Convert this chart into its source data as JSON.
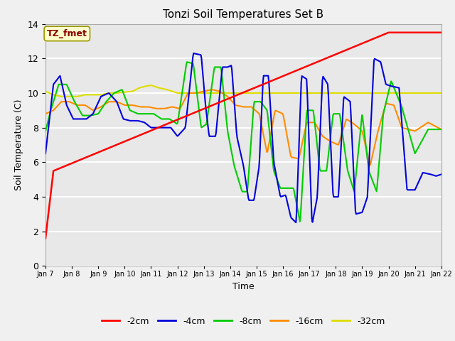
{
  "title": "Tonzi Soil Temperatures Set B",
  "xlabel": "Time",
  "ylabel": "Soil Temperature (C)",
  "xlim": [
    7,
    22
  ],
  "ylim": [
    0,
    14
  ],
  "yticks": [
    0,
    2,
    4,
    6,
    8,
    10,
    12,
    14
  ],
  "xtick_labels": [
    "Jan 7",
    "Jan 8",
    "Jan 9",
    "Jan 10",
    "Jan 11",
    "Jan 12",
    "Jan 13",
    "Jan 14",
    "Jan 15",
    "Jan 16",
    "Jan 17",
    "Jan 18",
    "Jan 19",
    "Jan 20",
    "Jan 21",
    "Jan 22"
  ],
  "xtick_positions": [
    7,
    8,
    9,
    10,
    11,
    12,
    13,
    14,
    15,
    16,
    17,
    18,
    19,
    20,
    21,
    22
  ],
  "plot_bg_color": "#e8e8e8",
  "fig_bg_color": "#f0f0f0",
  "grid_color": "#ffffff",
  "annotation_text": "TZ_fmet",
  "annotation_color": "#8b0000",
  "annotation_bg": "#ffffcc",
  "annotation_edge": "#999900",
  "series_colors": {
    "2cm": "#ff0000",
    "4cm": "#0000dd",
    "8cm": "#00cc00",
    "16cm": "#ff8c00",
    "32cm": "#dddd00"
  },
  "series_labels": {
    "2cm": "-2cm",
    "4cm": "-4cm",
    "8cm": "-8cm",
    "16cm": "-16cm",
    "32cm": "-32cm"
  }
}
